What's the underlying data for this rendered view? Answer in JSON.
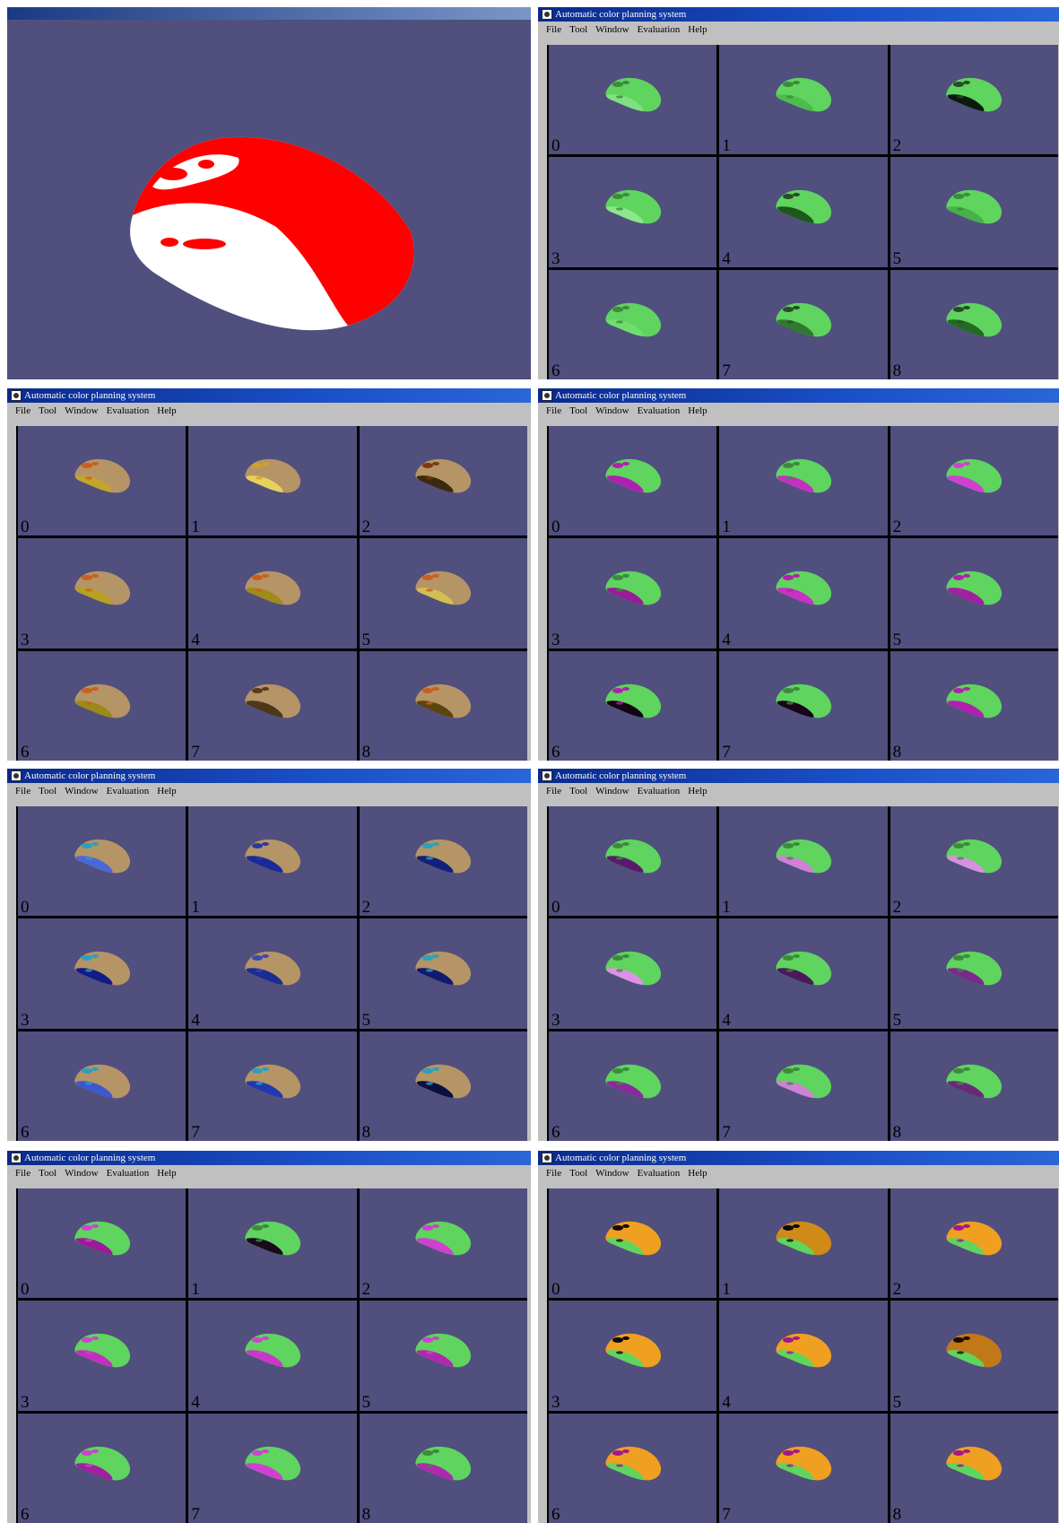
{
  "preview": {
    "background": "#504f7e",
    "mouse_colors": {
      "top": "#ff0000",
      "side": "#ffffff"
    }
  },
  "app": {
    "title": "Automatic color planning system",
    "menu": [
      "File",
      "Tool",
      "Window",
      "Evaluation",
      "Help"
    ]
  },
  "cell_labels": [
    "0",
    "1",
    "2",
    "3",
    "4",
    "5",
    "6",
    "7",
    "8"
  ],
  "windows": [
    {
      "name": "green-variants",
      "cells": [
        {
          "body": "#5fd45f",
          "side": "#7fe07f",
          "btn": "#3d8a3d"
        },
        {
          "body": "#5fd45f",
          "side": "#4cbc4c",
          "btn": "#3d8a3d"
        },
        {
          "body": "#5fd45f",
          "side": "#0b1a0b",
          "btn": "#2b4a2b"
        },
        {
          "body": "#5fd45f",
          "side": "#8ae88a",
          "btn": "#3d8a3d"
        },
        {
          "body": "#5fd45f",
          "side": "#1c5a1c",
          "btn": "#2b4a2b"
        },
        {
          "body": "#5fd45f",
          "side": "#48b048",
          "btn": "#3d8a3d"
        },
        {
          "body": "#5fd45f",
          "side": "#6ede6e",
          "btn": "#3d8a3d"
        },
        {
          "body": "#5fd45f",
          "side": "#2f7a2f",
          "btn": "#2b4a2b"
        },
        {
          "body": "#5fd45f",
          "side": "#236a23",
          "btn": "#2b4a2b"
        }
      ]
    },
    {
      "name": "tan-variants",
      "cells": [
        {
          "body": "#b59466",
          "side": "#c2a52a",
          "btn": "#c7601e"
        },
        {
          "body": "#b59466",
          "side": "#e6d25a",
          "btn": "#d0a030"
        },
        {
          "body": "#b59466",
          "side": "#3a2a10",
          "btn": "#7a3a10"
        },
        {
          "body": "#b59466",
          "side": "#b8a020",
          "btn": "#c7601e"
        },
        {
          "body": "#b59466",
          "side": "#a08a18",
          "btn": "#c7601e"
        },
        {
          "body": "#b59466",
          "side": "#d2bf50",
          "btn": "#c7601e"
        },
        {
          "body": "#b59466",
          "side": "#9a8a18",
          "btn": "#c7601e"
        },
        {
          "body": "#b59466",
          "side": "#4a3818",
          "btn": "#5a3a18"
        },
        {
          "body": "#b59466",
          "side": "#5a4410",
          "btn": "#c7601e"
        }
      ]
    },
    {
      "name": "green-magenta-variants",
      "cells": [
        {
          "body": "#5fd45f",
          "side": "#b020b0",
          "btn": "#b020b0"
        },
        {
          "body": "#5fd45f",
          "side": "#c430c4",
          "btn": "#3d8a3d"
        },
        {
          "body": "#5fd45f",
          "side": "#d040d0",
          "btn": "#d040d0"
        },
        {
          "body": "#5fd45f",
          "side": "#9a1a9a",
          "btn": "#3d8a3d"
        },
        {
          "body": "#5fd45f",
          "side": "#c830c8",
          "btn": "#b020b0"
        },
        {
          "body": "#5fd45f",
          "side": "#a020a0",
          "btn": "#b020b0"
        },
        {
          "body": "#5fd45f",
          "side": "#140414",
          "btn": "#b020b0"
        },
        {
          "body": "#5fd45f",
          "side": "#1a041a",
          "btn": "#3d8a3d"
        },
        {
          "body": "#5fd45f",
          "side": "#b020b0",
          "btn": "#b020b0"
        }
      ]
    },
    {
      "name": "tan-blue-variants",
      "cells": [
        {
          "body": "#b59466",
          "side": "#4a68d8",
          "btn": "#2aa0c0"
        },
        {
          "body": "#b59466",
          "side": "#1a2a9a",
          "btn": "#2a3aa0"
        },
        {
          "body": "#b59466",
          "side": "#12207a",
          "btn": "#2aa0c0"
        },
        {
          "body": "#b59466",
          "side": "#101c88",
          "btn": "#2aa0c0"
        },
        {
          "body": "#b59466",
          "side": "#1c2c90",
          "btn": "#3a4ab0"
        },
        {
          "body": "#b59466",
          "side": "#101a70",
          "btn": "#2aa0c0"
        },
        {
          "body": "#b59466",
          "side": "#3a58d0",
          "btn": "#2aa0c0"
        },
        {
          "body": "#b59466",
          "side": "#2038b0",
          "btn": "#2aa0c0"
        },
        {
          "body": "#b59466",
          "side": "#0a1040",
          "btn": "#2aa0c0"
        }
      ]
    },
    {
      "name": "green-purple-variants",
      "cells": [
        {
          "body": "#5fd45f",
          "side": "#5a1a6a",
          "btn": "#3d8a3d"
        },
        {
          "body": "#5fd45f",
          "side": "#d080d8",
          "btn": "#3d8a3d"
        },
        {
          "body": "#5fd45f",
          "side": "#d890e0",
          "btn": "#3d8a3d"
        },
        {
          "body": "#5fd45f",
          "side": "#e090e8",
          "btn": "#3d8a3d"
        },
        {
          "body": "#5fd45f",
          "side": "#4a1a5a",
          "btn": "#3d8a3d"
        },
        {
          "body": "#5fd45f",
          "side": "#7a2a8a",
          "btn": "#3d8a3d"
        },
        {
          "body": "#5fd45f",
          "side": "#8a2a9a",
          "btn": "#3d8a3d"
        },
        {
          "body": "#5fd45f",
          "side": "#d080d8",
          "btn": "#3d8a3d"
        },
        {
          "body": "#5fd45f",
          "side": "#6a2a7a",
          "btn": "#3d8a3d"
        }
      ]
    },
    {
      "name": "magenta-green-variants",
      "cells": [
        {
          "body": "#5fd45f",
          "side": "#9a1a9a",
          "btn": "#d040d0"
        },
        {
          "body": "#5fd45f",
          "side": "#1a0a1a",
          "btn": "#3d8a3d"
        },
        {
          "body": "#5fd45f",
          "side": "#d040d0",
          "btn": "#d040d0"
        },
        {
          "body": "#5fd45f",
          "side": "#c030c0",
          "btn": "#d040d0"
        },
        {
          "body": "#5fd45f",
          "side": "#c838c8",
          "btn": "#d040d0"
        },
        {
          "body": "#5fd45f",
          "side": "#b028b0",
          "btn": "#d040d0"
        },
        {
          "body": "#5fd45f",
          "side": "#a020a0",
          "btn": "#d040d0"
        },
        {
          "body": "#5fd45f",
          "side": "#d040d0",
          "btn": "#d040d0"
        },
        {
          "body": "#5fd45f",
          "side": "#b028b0",
          "btn": "#3d8a3d"
        }
      ]
    },
    {
      "name": "orange-green-variants",
      "cells": [
        {
          "body": "#f0a020",
          "side": "#5fd45f",
          "btn": "#1a0a00"
        },
        {
          "body": "#d08a18",
          "side": "#5fd45f",
          "btn": "#0a0a0a"
        },
        {
          "body": "#f0a020",
          "side": "#5fd45f",
          "btn": "#a01890"
        },
        {
          "body": "#f0a020",
          "side": "#5fd45f",
          "btn": "#0a0a0a"
        },
        {
          "body": "#f0a020",
          "side": "#5fd45f",
          "btn": "#a01890"
        },
        {
          "body": "#c07818",
          "side": "#5fd45f",
          "btn": "#1a0a00"
        },
        {
          "body": "#f0a020",
          "side": "#5fd45f",
          "btn": "#a01890"
        },
        {
          "body": "#f0a020",
          "side": "#5fd45f",
          "btn": "#a01890"
        },
        {
          "body": "#f0a020",
          "side": "#5fd45f",
          "btn": "#a01890"
        }
      ]
    }
  ]
}
